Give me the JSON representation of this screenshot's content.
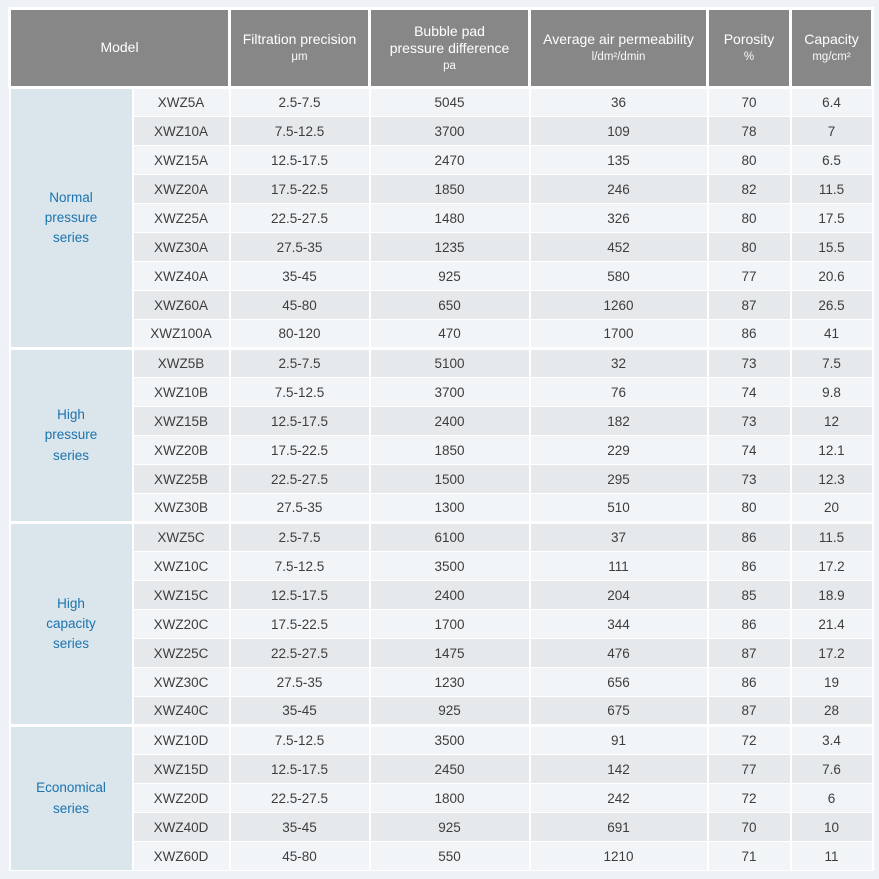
{
  "colors": {
    "page_background": "#eef2f6",
    "header_background": "#878787",
    "header_text": "#ffffff",
    "row_light": "#f1f5f8",
    "row_shaded": "#e6e9eb",
    "series_cell_background": "#dbe5ec",
    "series_text": "#1b74ae",
    "data_text": "#3d3d3d"
  },
  "table": {
    "header": {
      "model": "Model",
      "columns": [
        {
          "label": "Filtration precision",
          "sub": "μm"
        },
        {
          "label": [
            "Bubble pad",
            "pressure difference"
          ],
          "sub": "pa"
        },
        {
          "label": "Average air permeability",
          "sub": "l/dm²/dmin"
        },
        {
          "label": "Porosity",
          "sub": "%"
        },
        {
          "label": "Capacity",
          "sub": "mg/cm²"
        }
      ]
    },
    "sections": [
      {
        "id": "normal-pressure-series",
        "series": "Normal pressure series",
        "series_lines": [
          "Normal",
          "pressure",
          "series"
        ],
        "rows": [
          [
            "XWZ5A",
            "2.5-7.5",
            "5045",
            "36",
            "70",
            "6.4"
          ],
          [
            "XWZ10A",
            "7.5-12.5",
            "3700",
            "109",
            "78",
            "7"
          ],
          [
            "XWZ15A",
            "12.5-17.5",
            "2470",
            "135",
            "80",
            "6.5"
          ],
          [
            "XWZ20A",
            "17.5-22.5",
            "1850",
            "246",
            "82",
            "11.5"
          ],
          [
            "XWZ25A",
            "22.5-27.5",
            "1480",
            "326",
            "80",
            "17.5"
          ],
          [
            "XWZ30A",
            "27.5-35",
            "1235",
            "452",
            "80",
            "15.5"
          ],
          [
            "XWZ40A",
            "35-45",
            "925",
            "580",
            "77",
            "20.6"
          ],
          [
            "XWZ60A",
            "45-80",
            "650",
            "1260",
            "87",
            "26.5"
          ],
          [
            "XWZ100A",
            "80-120",
            "470",
            "1700",
            "86",
            "41"
          ]
        ]
      },
      {
        "id": "high-pressure-series",
        "series": "High pressure series",
        "series_lines": [
          "High",
          "pressure",
          "series"
        ],
        "rows": [
          [
            "XWZ5B",
            "2.5-7.5",
            "5100",
            "32",
            "73",
            "7.5"
          ],
          [
            "XWZ10B",
            "7.5-12.5",
            "3700",
            "76",
            "74",
            "9.8"
          ],
          [
            "XWZ15B",
            "12.5-17.5",
            "2400",
            "182",
            "73",
            "12"
          ],
          [
            "XWZ20B",
            "17.5-22.5",
            "1850",
            "229",
            "74",
            "12.1"
          ],
          [
            "XWZ25B",
            "22.5-27.5",
            "1500",
            "295",
            "73",
            "12.3"
          ],
          [
            "XWZ30B",
            "27.5-35",
            "1300",
            "510",
            "80",
            "20"
          ]
        ]
      },
      {
        "id": "high-capacity-series",
        "series": "High capacity series",
        "series_lines": [
          "High",
          "capacity",
          "series"
        ],
        "rows": [
          [
            "XWZ5C",
            "2.5-7.5",
            "6100",
            "37",
            "86",
            "11.5"
          ],
          [
            "XWZ10C",
            "7.5-12.5",
            "3500",
            "111",
            "86",
            "17.2"
          ],
          [
            "XWZ15C",
            "12.5-17.5",
            "2400",
            "204",
            "85",
            "18.9"
          ],
          [
            "XWZ20C",
            "17.5-22.5",
            "1700",
            "344",
            "86",
            "21.4"
          ],
          [
            "XWZ25C",
            "22.5-27.5",
            "1475",
            "476",
            "87",
            "17.2"
          ],
          [
            "XWZ30C",
            "27.5-35",
            "1230",
            "656",
            "86",
            "19"
          ],
          [
            "XWZ40C",
            "35-45",
            "925",
            "675",
            "87",
            "28"
          ]
        ]
      },
      {
        "id": "economical-series",
        "series": "Economical series",
        "series_lines": [
          "Economical",
          "series"
        ],
        "rows": [
          [
            "XWZ10D",
            "7.5-12.5",
            "3500",
            "91",
            "72",
            "3.4"
          ],
          [
            "XWZ15D",
            "12.5-17.5",
            "2450",
            "142",
            "77",
            "7.6"
          ],
          [
            "XWZ20D",
            "22.5-27.5",
            "1800",
            "242",
            "72",
            "6"
          ],
          [
            "XWZ40D",
            "35-45",
            "925",
            "691",
            "70",
            "10"
          ],
          [
            "XWZ60D",
            "45-80",
            "550",
            "1210",
            "71",
            "11"
          ]
        ]
      }
    ]
  }
}
